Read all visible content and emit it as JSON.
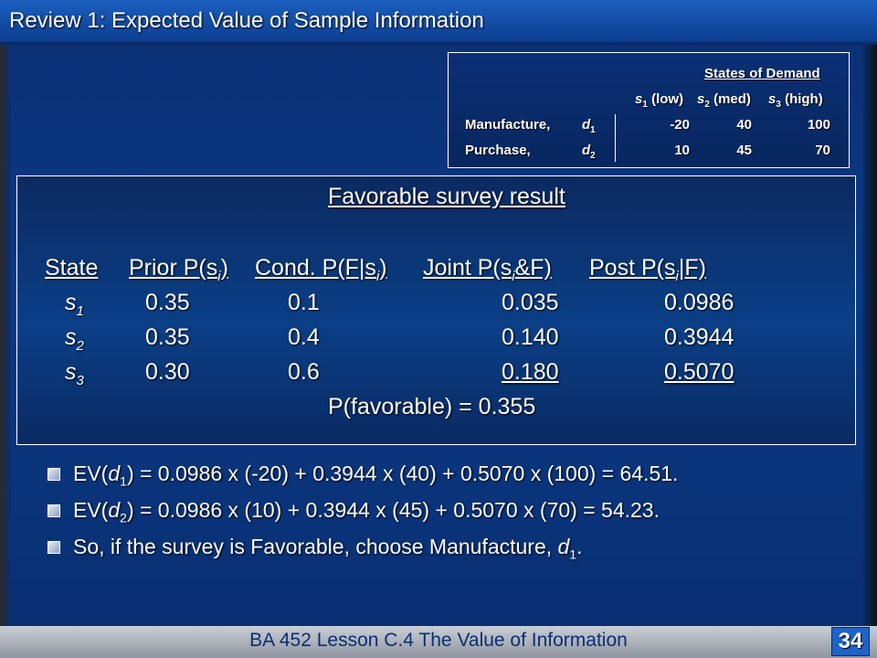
{
  "slide": {
    "title": "Review 1: Expected Value of Sample Information",
    "footer": "BA 452 Lesson C.4 The Value of Information",
    "slide_number": "34"
  },
  "payoff_table": {
    "heading": "States of Demand",
    "columns": [
      {
        "sym": "s",
        "sub": "1",
        "label": " (low)"
      },
      {
        "sym": "s",
        "sub": "2",
        "label": " (med)"
      },
      {
        "sym": "s",
        "sub": "3",
        "label": " (high)"
      }
    ],
    "rows": [
      {
        "action": "Manufacture,",
        "dsym": "d",
        "dsub": "1",
        "values": [
          "-20",
          "40",
          "100"
        ]
      },
      {
        "action": "Purchase,",
        "dsym": "d",
        "dsub": "2",
        "values": [
          "10",
          "45",
          "70"
        ]
      }
    ]
  },
  "survey": {
    "heading": "Favorable survey result",
    "headers": {
      "state": "State",
      "prior_a": "Prior P(s",
      "prior_sub": "i",
      "prior_b": ")",
      "cond_a": "Cond. P(F|s",
      "cond_sub": "i",
      "cond_b": ")",
      "joint_a": "Joint P(s",
      "joint_sub": "i",
      "joint_b": "&F)",
      "post_a": "Post P(s",
      "post_sub": "i",
      "post_b": "|F)"
    },
    "rows": [
      {
        "sym": "s",
        "sub": "1",
        "prior": "0.35",
        "cond": "0.1",
        "joint": "0.035",
        "post": "0.0986"
      },
      {
        "sym": "s",
        "sub": "2",
        "prior": "0.35",
        "cond": "0.4",
        "joint": "0.140",
        "post": "0.3944"
      },
      {
        "sym": "s",
        "sub": "3",
        "prior": "0.30",
        "cond": "0.6",
        "joint": "0.180",
        "post": "0.5070"
      }
    ],
    "total": "P(favorable) = 0.355"
  },
  "bullets": [
    {
      "a": "EV(",
      "sym": "d",
      "sub": "1",
      "b": ") = 0.0986 x (-20) + 0.3944 x (40) + 0.5070 x (100) = 64.51."
    },
    {
      "a": "EV(",
      "sym": "d",
      "sub": "2",
      "b": ") = 0.0986 x (10) + 0.3944 x (45) + 0.5070 x (70) = 54.23."
    },
    {
      "a": "So, if the survey is Favorable, choose Manufacture, ",
      "sym": "d",
      "sub": "1",
      "b": "."
    }
  ]
}
